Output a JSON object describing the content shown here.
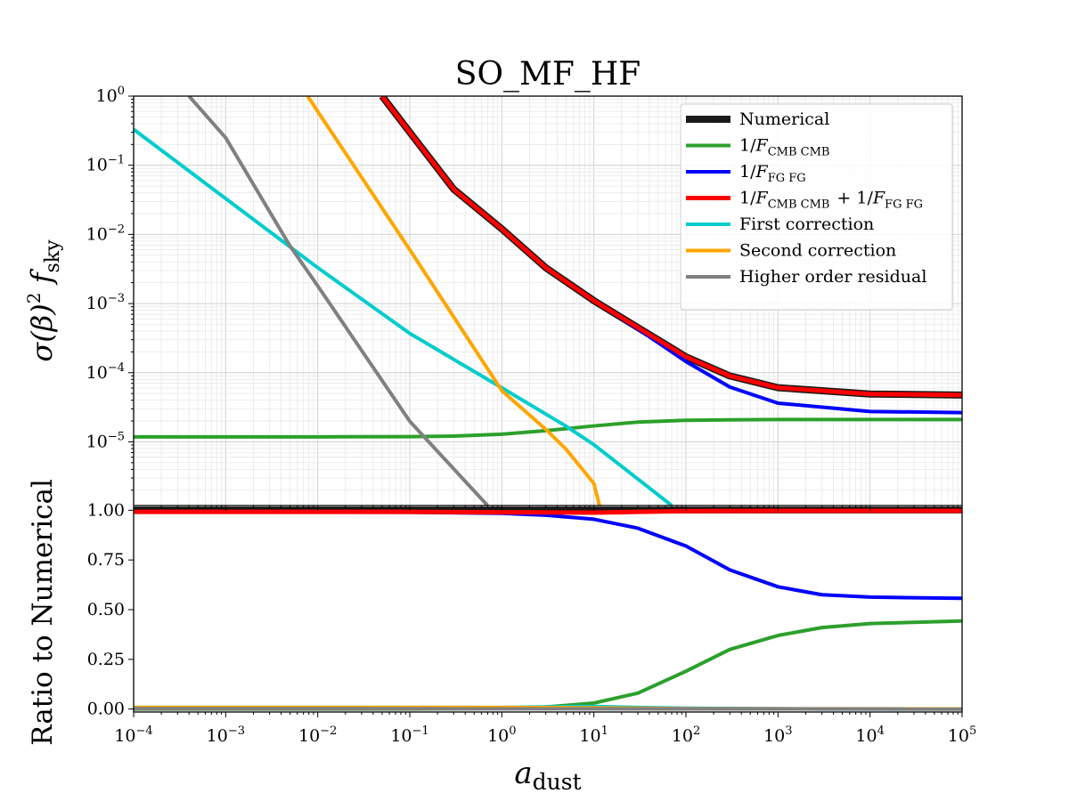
{
  "chart_data": [
    {
      "panel": "top",
      "type": "line",
      "title": "SO_MF_HF",
      "ylabel": "σ(β)² f_sky",
      "xscale": "log",
      "yscale": "log",
      "xlim": [
        0.0001,
        100000
      ],
      "ylim": [
        1.2e-06,
        1
      ],
      "grid": true,
      "legend_position": "upper right",
      "y_ticks": [
        {
          "value": 1,
          "base": "10",
          "exp": "0"
        },
        {
          "value": 0.1,
          "base": "10",
          "exp": "−1"
        },
        {
          "value": 0.01,
          "base": "10",
          "exp": "−2"
        },
        {
          "value": 0.001,
          "base": "10",
          "exp": "−3"
        },
        {
          "value": 0.0001,
          "base": "10",
          "exp": "−4"
        },
        {
          "value": 1e-05,
          "base": "10",
          "exp": "−5"
        }
      ],
      "series": [
        {
          "name": "Numerical",
          "color": "#1a1a1a",
          "width": 8,
          "x": [
            0.05,
            0.1,
            0.3,
            1,
            3,
            10,
            30,
            100,
            300,
            1000,
            10000,
            100000
          ],
          "y": [
            1,
            0.3,
            0.045,
            0.012,
            0.0033,
            0.0011,
            0.00045,
            0.00017,
            8.98e-05,
            6.07e-05,
            4.91e-05,
            4.76e-05
          ]
        },
        {
          "name": "1/F_CMB CMB",
          "color": "#2ca02c",
          "width": 4,
          "x": [
            0.0001,
            0.01,
            0.1,
            0.3,
            1,
            3,
            10,
            30,
            100,
            300,
            1000,
            10000,
            100000
          ],
          "y": [
            1.18e-05,
            1.18e-05,
            1.19e-05,
            1.21e-05,
            1.29e-05,
            1.45e-05,
            1.7e-05,
            1.93e-05,
            2.05e-05,
            2.08e-05,
            2.1e-05,
            2.1e-05,
            2.1e-05
          ]
        },
        {
          "name": "1/F_FG FG",
          "color": "#0000ff",
          "width": 4,
          "x": [
            0.05,
            0.1,
            0.3,
            1,
            3,
            10,
            30,
            100,
            300,
            1000,
            10000,
            100000
          ],
          "y": [
            1,
            0.3,
            0.045,
            0.012,
            0.0033,
            0.0011,
            0.00043,
            0.000145,
            6.21e-05,
            3.63e-05,
            2.75e-05,
            2.65e-05
          ]
        },
        {
          "name": "1/F_CMB CMB + 1/F_FG FG",
          "color": "#ff0000",
          "width": 5,
          "x": [
            0.05,
            0.1,
            0.3,
            1,
            3,
            10,
            30,
            100,
            300,
            1000,
            10000,
            100000
          ],
          "y": [
            1,
            0.3,
            0.045,
            0.012,
            0.0033,
            0.0011,
            0.00045,
            0.00017,
            8.98e-05,
            6.07e-05,
            4.91e-05,
            4.76e-05
          ]
        },
        {
          "name": "First correction",
          "color": "#00cccc",
          "width": 4,
          "x": [
            0.0001,
            0.001,
            0.005,
            0.01,
            0.1,
            1,
            5,
            10,
            30,
            70
          ],
          "y": [
            0.33,
            0.033,
            0.0066,
            0.0033,
            0.00037,
            6.04e-05,
            1.68e-05,
            9.1e-06,
            2.9e-06,
            1.2e-06
          ]
        },
        {
          "name": "Second correction",
          "color": "#ffa500",
          "width": 4,
          "x": [
            0.00778,
            0.01,
            0.1,
            1,
            3,
            5,
            10,
            11.5
          ],
          "y": [
            1,
            0.6,
            0.006,
            5.5e-05,
            1.52e-05,
            7.8e-06,
            2.5e-06,
            1.2e-06
          ]
        },
        {
          "name": "Higher order residual",
          "color": "#808080",
          "width": 4,
          "x": [
            0.0004,
            0.001,
            0.005,
            0.01,
            0.1,
            0.7
          ],
          "y": [
            1,
            0.25,
            0.0068,
            0.0018,
            1.98e-05,
            1.2e-06
          ]
        }
      ]
    },
    {
      "panel": "bottom",
      "type": "line",
      "xlabel": "a_dust",
      "ylabel": "Ratio to Numerical",
      "xscale": "log",
      "xlim": [
        0.0001,
        100000
      ],
      "ylim": [
        -0.015,
        1.015
      ],
      "grid": false,
      "x_ticks": [
        {
          "value": 0.0001,
          "base": "10",
          "exp": "−4"
        },
        {
          "value": 0.001,
          "base": "10",
          "exp": "−3"
        },
        {
          "value": 0.01,
          "base": "10",
          "exp": "−2"
        },
        {
          "value": 0.1,
          "base": "10",
          "exp": "−1"
        },
        {
          "value": 1,
          "base": "10",
          "exp": "0"
        },
        {
          "value": 10,
          "base": "10",
          "exp": "1"
        },
        {
          "value": 100,
          "base": "10",
          "exp": "2"
        },
        {
          "value": 1000,
          "base": "10",
          "exp": "3"
        },
        {
          "value": 10000,
          "base": "10",
          "exp": "4"
        },
        {
          "value": 100000,
          "base": "10",
          "exp": "5"
        }
      ],
      "y_ticks": [
        "0.00",
        "0.25",
        "0.50",
        "0.75",
        "1.00"
      ],
      "series": [
        {
          "name": "Numerical",
          "color": "#1a1a1a",
          "width": 7,
          "x": [
            0.0001,
            100000
          ],
          "y": [
            1.0,
            1.0
          ]
        },
        {
          "name": "1/F_CMB CMB",
          "color": "#2ca02c",
          "width": 4,
          "x": [
            0.0001,
            0.1,
            1,
            3,
            10,
            30,
            100,
            300,
            1000,
            3000,
            10000,
            100000
          ],
          "y": [
            0.0,
            0.0,
            0.004,
            0.01,
            0.03,
            0.08,
            0.19,
            0.3,
            0.37,
            0.41,
            0.43,
            0.443
          ]
        },
        {
          "name": "1/F_FG FG",
          "color": "#0000ff",
          "width": 4,
          "x": [
            0.0001,
            0.1,
            1,
            3,
            10,
            30,
            100,
            300,
            1000,
            3000,
            10000,
            100000
          ],
          "y": [
            0.992,
            0.99,
            0.985,
            0.975,
            0.955,
            0.91,
            0.82,
            0.7,
            0.615,
            0.575,
            0.563,
            0.557
          ]
        },
        {
          "name": "1/F_CMB CMB + 1/F_FG FG",
          "color": "#ff0000",
          "width": 5,
          "x": [
            0.0001,
            0.1,
            1,
            10,
            30,
            100,
            1000,
            100000
          ],
          "y": [
            0.992,
            0.992,
            0.99,
            0.988,
            0.992,
            0.996,
            0.997,
            0.997
          ]
        },
        {
          "name": "First correction",
          "color": "#00cccc",
          "width": 4,
          "x": [
            0.0001,
            0.1,
            1,
            5,
            10,
            30,
            100,
            1000,
            100000
          ],
          "y": [
            0.008,
            0.008,
            0.008,
            0.012,
            0.013,
            0.008,
            0.004,
            0.001,
            0.0
          ]
        },
        {
          "name": "Second correction",
          "color": "#ffa500",
          "width": 4,
          "x": [
            0.0001,
            1,
            10,
            100,
            100000
          ],
          "y": [
            0.008,
            0.008,
            0.006,
            0.002,
            0.0
          ]
        },
        {
          "name": "Higher order residual",
          "color": "#808080",
          "width": 4,
          "x": [
            0.0001,
            100000
          ],
          "y": [
            0.002,
            0.0
          ]
        }
      ]
    }
  ]
}
